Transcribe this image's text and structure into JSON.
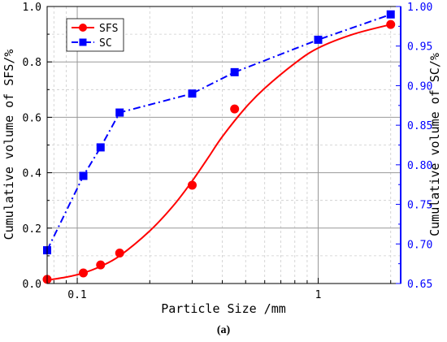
{
  "chart_data": {
    "type": "line",
    "xlabel": "Particle Size /mm",
    "ylabel_left": "Cumulative volume of SFS/%",
    "ylabel_right": "Cumulative volume of SC/%",
    "x_scale": "log",
    "xlim": [
      0.075,
      2.2
    ],
    "x_ticks": [
      0.1,
      1
    ],
    "x_tick_labels": [
      "0.1",
      "1"
    ],
    "ylim_left": [
      0.0,
      1.0
    ],
    "y_ticks_left": [
      "0.0",
      "0.2",
      "0.4",
      "0.6",
      "0.8",
      "1.0"
    ],
    "ylim_right": [
      0.65,
      1.0
    ],
    "y_ticks_right": [
      "0.65",
      "0.70",
      "0.75",
      "0.80",
      "0.85",
      "0.90",
      "0.95",
      "1.00"
    ],
    "grid": true,
    "legend_position": "top-left",
    "caption": "(a)",
    "series": [
      {
        "name": "SFS",
        "axis": "left",
        "color": "#ff0000",
        "marker": "circle",
        "line": "solid smooth fit",
        "points": [
          {
            "x": 0.075,
            "y": 0.015
          },
          {
            "x": 0.106,
            "y": 0.038
          },
          {
            "x": 0.125,
            "y": 0.067
          },
          {
            "x": 0.15,
            "y": 0.11
          },
          {
            "x": 0.3,
            "y": 0.355
          },
          {
            "x": 0.45,
            "y": 0.63
          },
          {
            "x": 2.0,
            "y": 0.935
          }
        ],
        "fit": [
          {
            "x": 0.075,
            "y": 0.012
          },
          {
            "x": 0.09,
            "y": 0.023
          },
          {
            "x": 0.106,
            "y": 0.038
          },
          {
            "x": 0.125,
            "y": 0.062
          },
          {
            "x": 0.15,
            "y": 0.1
          },
          {
            "x": 0.2,
            "y": 0.19
          },
          {
            "x": 0.25,
            "y": 0.28
          },
          {
            "x": 0.3,
            "y": 0.37
          },
          {
            "x": 0.35,
            "y": 0.455
          },
          {
            "x": 0.4,
            "y": 0.53
          },
          {
            "x": 0.5,
            "y": 0.635
          },
          {
            "x": 0.6,
            "y": 0.705
          },
          {
            "x": 0.8,
            "y": 0.795
          },
          {
            "x": 1.0,
            "y": 0.85
          },
          {
            "x": 1.4,
            "y": 0.9
          },
          {
            "x": 2.0,
            "y": 0.935
          }
        ]
      },
      {
        "name": "SC",
        "axis": "right",
        "color": "#0000ff",
        "marker": "square",
        "line": "dash-dot",
        "points": [
          {
            "x": 0.075,
            "y": 0.692
          },
          {
            "x": 0.106,
            "y": 0.786
          },
          {
            "x": 0.125,
            "y": 0.822
          },
          {
            "x": 0.15,
            "y": 0.866
          },
          {
            "x": 0.3,
            "y": 0.89
          },
          {
            "x": 0.45,
            "y": 0.917
          },
          {
            "x": 1.0,
            "y": 0.958
          },
          {
            "x": 2.0,
            "y": 0.99
          }
        ]
      }
    ]
  }
}
